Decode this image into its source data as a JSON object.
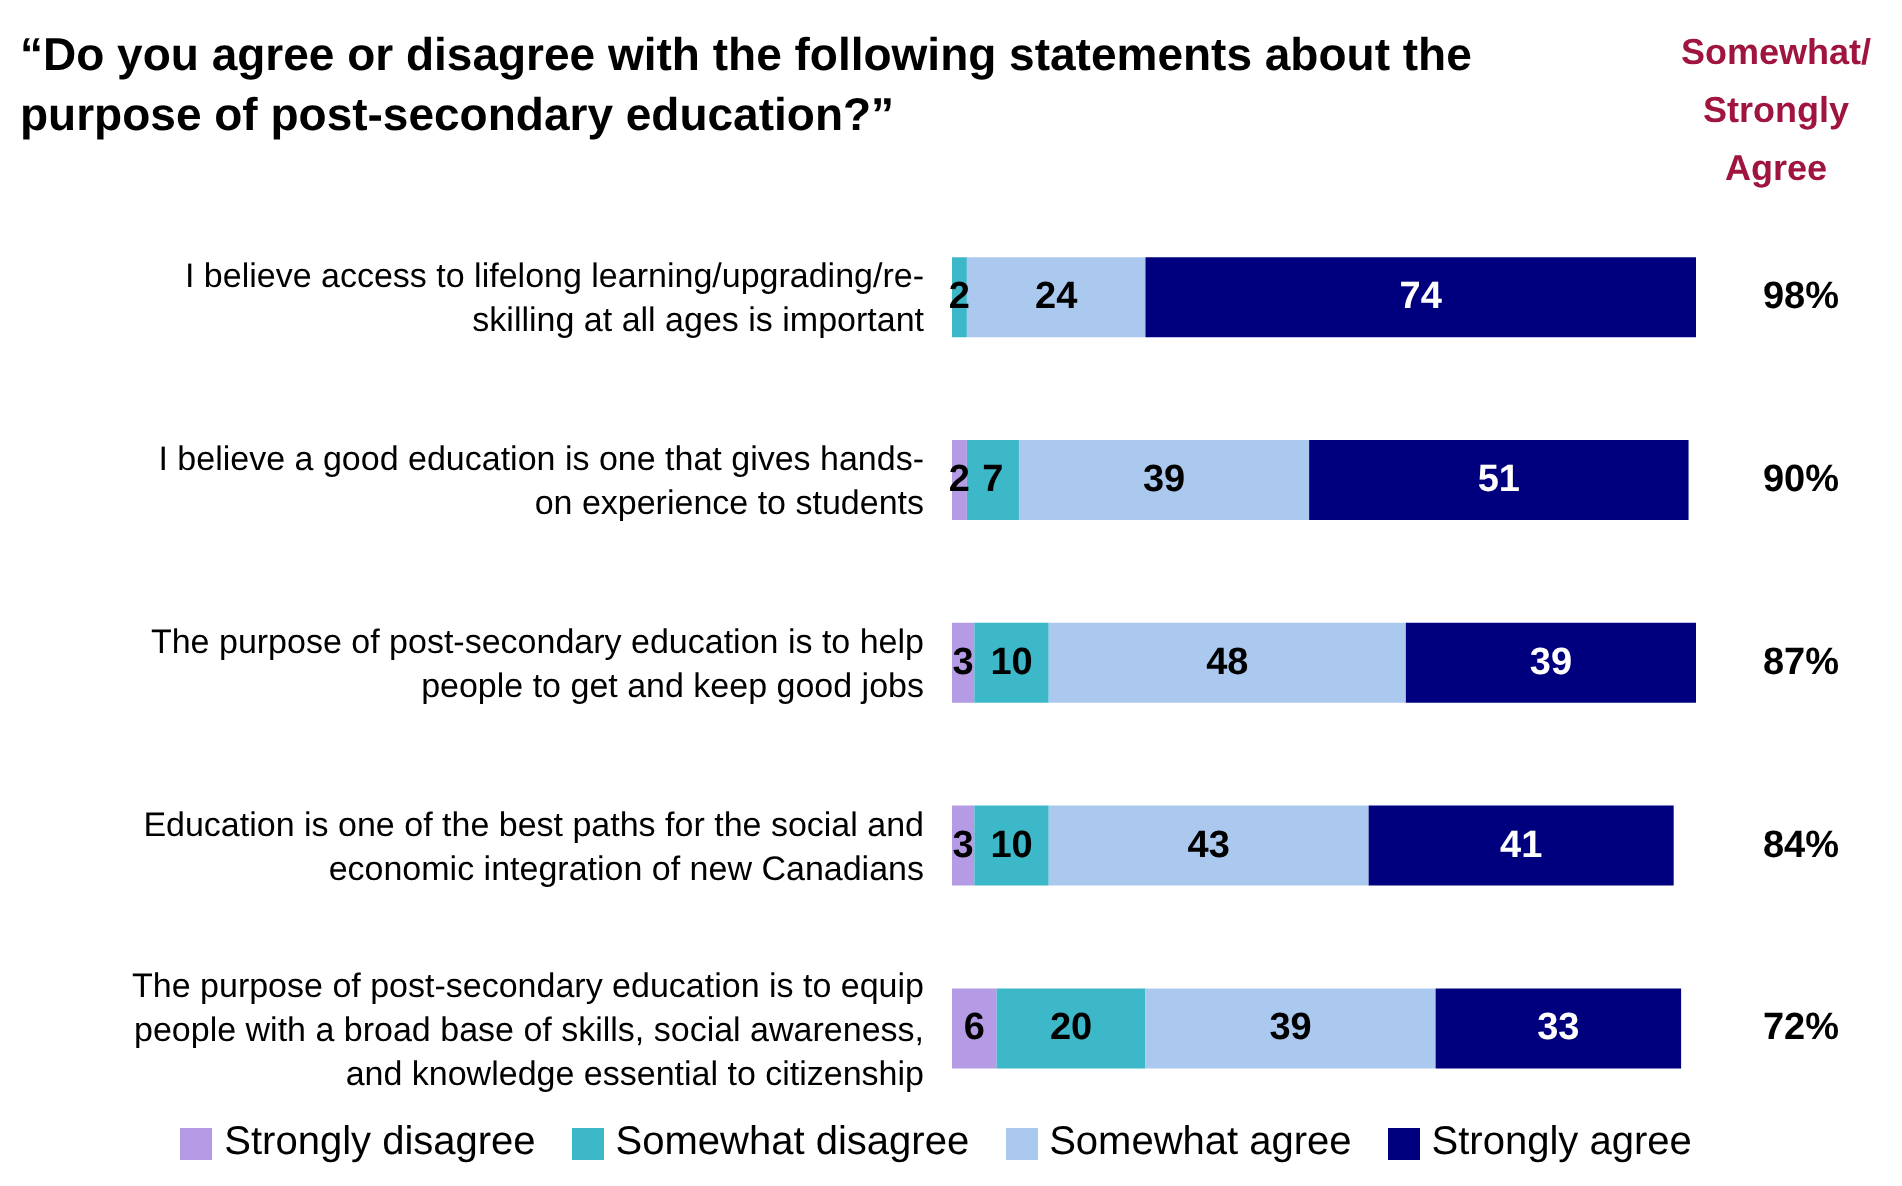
{
  "chart_data": {
    "type": "bar",
    "orientation": "horizontal",
    "stacked": true,
    "title": "“Do you agree or disagree with the following statements about the purpose of post-secondary education?”",
    "categories": [
      "I believe access to lifelong learning/upgrading/re-skilling at all ages is important",
      "I believe a good education is one that gives hands-on experience to students",
      "The purpose of post-secondary education is to help people to get and keep good jobs",
      "Education is one of the best paths for the social and economic integration of new Canadians",
      "The purpose of post-secondary education is to equip people with a broad base of skills, social awareness, and knowledge essential to citizenship"
    ],
    "series": [
      {
        "name": "Strongly disagree",
        "color": "#b59be6",
        "values": [
          0,
          2,
          3,
          3,
          6
        ],
        "value_labels": [
          null,
          "2",
          "3",
          "3",
          "6"
        ]
      },
      {
        "name": "Somewhat disagree",
        "color": "#3cb8c8",
        "values": [
          2,
          7,
          10,
          10,
          20
        ],
        "value_labels": [
          "2",
          "7",
          "10",
          "10",
          "20"
        ]
      },
      {
        "name": "Somewhat agree",
        "color": "#abc9ef",
        "values": [
          24,
          39,
          48,
          43,
          39
        ],
        "value_labels": [
          "24",
          "39",
          "48",
          "43",
          "39"
        ]
      },
      {
        "name": "Strongly agree",
        "color": "#00007f",
        "values": [
          74,
          51,
          39,
          41,
          33
        ],
        "value_labels": [
          "74",
          "51",
          "39",
          "41",
          "33"
        ]
      }
    ],
    "xlim": [
      0,
      100
    ],
    "tick_labels": "y",
    "legend": "bottom",
    "annotations": [
      "Somewhat/ Strongly Agree",
      "98%",
      "90%",
      "87%",
      "84%",
      "72%"
    ]
  }
}
